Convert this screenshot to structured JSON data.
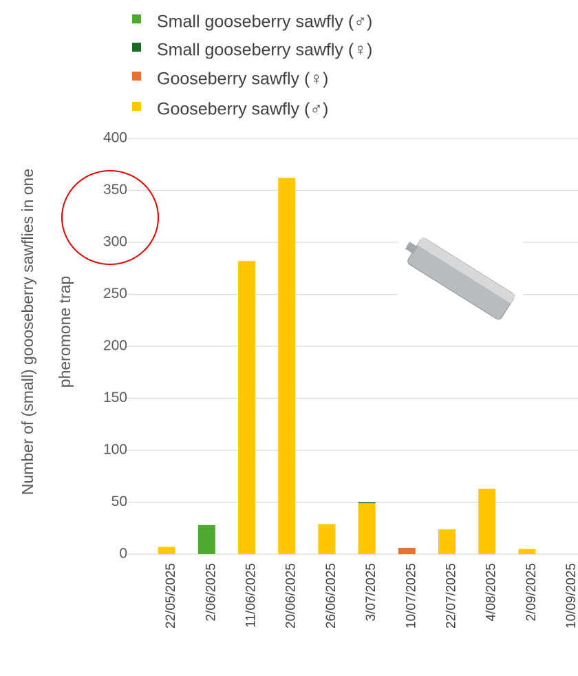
{
  "chart_data": {
    "type": "bar",
    "stacked": true,
    "ylabel": [
      "Number of (small) goooseberry sawflies in one",
      "pheromone trap"
    ],
    "categories": [
      "22/05/2025",
      "2/06/2025",
      "11/06/2025",
      "20/06/2025",
      "26/06/2025",
      "3/07/2025",
      "10/07/2025",
      "22/07/2025",
      "4/08/2025",
      "2/09/2025",
      "10/09/2025"
    ],
    "series": [
      {
        "name": "Small gooseberry sawfly (♂)",
        "color": "#4ea72e",
        "values": [
          0,
          28,
          0,
          0,
          0,
          0,
          0,
          0,
          0,
          0,
          0
        ]
      },
      {
        "name": "Small gooseberry sawfly  (♀)",
        "color": "#196b24",
        "values": [
          0,
          0,
          0,
          0,
          0,
          1,
          0,
          0,
          0,
          0,
          0
        ]
      },
      {
        "name": "Gooseberry sawfly (♀)",
        "color": "#e97132",
        "values": [
          0,
          0,
          0,
          0,
          0,
          0,
          6,
          0,
          0,
          0,
          0
        ]
      },
      {
        "name": "Gooseberry sawfly (♂)",
        "color": "#ffc800",
        "values": [
          7,
          0,
          282,
          362,
          29,
          49,
          0,
          24,
          63,
          5,
          0
        ]
      }
    ],
    "ylim": [
      0,
      400
    ],
    "yticks": [
      0,
      50,
      100,
      150,
      200,
      250,
      300,
      350,
      400
    ],
    "grid": true
  }
}
